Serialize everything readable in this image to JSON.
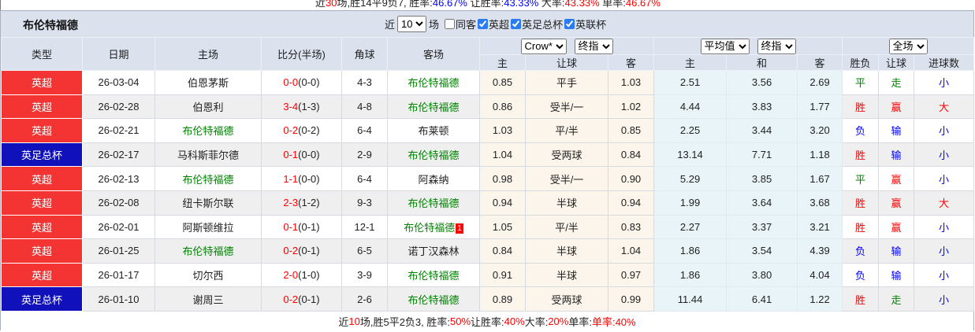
{
  "colors": {
    "red": "#ff0000",
    "green": "#008000",
    "blue": "#0000ff",
    "badge_premier": "#f43333",
    "badge_facup": "#1111bb",
    "header_bg": "#dbe2ee",
    "odds_bg": "#fcf5ec",
    "avg_bg": "#e9f4f8",
    "alt_row_bg": "#efeff0"
  },
  "top_partial_line": {
    "segments": [
      {
        "text": "近",
        "color": "#222222"
      },
      {
        "text": "30",
        "color": "#ff0000"
      },
      {
        "text": "场,胜14平9负7, 胜率:",
        "color": "#222222"
      },
      {
        "text": "46.67%",
        "color": "#0000ff"
      },
      {
        "text": " 让胜率:",
        "color": "#222222"
      },
      {
        "text": "43.33%",
        "color": "#0000ff"
      },
      {
        "text": " 大率:",
        "color": "#222222"
      },
      {
        "text": "43.33%",
        "color": "#ff0000"
      },
      {
        "text": " 单率:",
        "color": "#222222"
      },
      {
        "text": "46.67%",
        "color": "#ff0000"
      }
    ]
  },
  "title_bar": {
    "team": "布伦特福德",
    "recent_prefix": "近",
    "recent_count": "10",
    "recent_suffix": "场",
    "filters": [
      {
        "label": "同客",
        "checked": false
      },
      {
        "label": "英超",
        "checked": true
      },
      {
        "label": "英足总杯",
        "checked": true
      },
      {
        "label": "英联杯",
        "checked": true
      }
    ]
  },
  "header": {
    "merged_columns": [
      "类型",
      "日期",
      "主场",
      "比分(半场)",
      "角球",
      "客场"
    ],
    "selects": {
      "odds_source": "Crow*",
      "odds_mode": "终指",
      "avg_source": "平均值",
      "avg_mode": "终指",
      "scope": "全场"
    },
    "sub_columns": [
      "主",
      "让球",
      "客",
      "主",
      "和",
      "客",
      "胜负",
      "让球",
      "进球数"
    ]
  },
  "rows": [
    {
      "type": "英超",
      "date": "26-03-04",
      "home": "伯恩茅斯",
      "home_is_focus": false,
      "score_ft": "0-0",
      "score_ht": "(0-0)",
      "corners": "4-3",
      "away": "布伦特福德",
      "away_is_focus": true,
      "away_card": "",
      "odds_home": "0.85",
      "handicap": "平手",
      "odds_away": "1.03",
      "avg_home": "2.51",
      "avg_draw": "3.56",
      "avg_away": "2.69",
      "result": "平",
      "handicap_result": "走",
      "goals_result": "小"
    },
    {
      "type": "英超",
      "date": "26-02-28",
      "home": "伯恩利",
      "home_is_focus": false,
      "score_ft": "3-4",
      "score_ht": "(1-3)",
      "corners": "4-8",
      "away": "布伦特福德",
      "away_is_focus": true,
      "away_card": "",
      "odds_home": "0.86",
      "handicap": "受半/一",
      "odds_away": "1.02",
      "avg_home": "4.44",
      "avg_draw": "3.83",
      "avg_away": "1.77",
      "result": "胜",
      "handicap_result": "赢",
      "goals_result": "大"
    },
    {
      "type": "英超",
      "date": "26-02-21",
      "home": "布伦特福德",
      "home_is_focus": true,
      "score_ft": "0-2",
      "score_ht": "(0-2)",
      "corners": "6-4",
      "away": "布莱顿",
      "away_is_focus": false,
      "away_card": "",
      "odds_home": "1.03",
      "handicap": "平/半",
      "odds_away": "0.85",
      "avg_home": "2.25",
      "avg_draw": "3.44",
      "avg_away": "3.20",
      "result": "负",
      "handicap_result": "输",
      "goals_result": "小"
    },
    {
      "type": "英足总杯",
      "date": "26-02-17",
      "home": "马科斯菲尔德",
      "home_is_focus": false,
      "score_ft": "0-1",
      "score_ht": "(0-0)",
      "corners": "2-9",
      "away": "布伦特福德",
      "away_is_focus": true,
      "away_card": "",
      "odds_home": "1.04",
      "handicap": "受两球",
      "odds_away": "0.84",
      "avg_home": "13.14",
      "avg_draw": "7.71",
      "avg_away": "1.18",
      "result": "胜",
      "handicap_result": "输",
      "goals_result": "小"
    },
    {
      "type": "英超",
      "date": "26-02-13",
      "home": "布伦特福德",
      "home_is_focus": true,
      "score_ft": "1-1",
      "score_ht": "(0-0)",
      "corners": "6-4",
      "away": "阿森纳",
      "away_is_focus": false,
      "away_card": "",
      "odds_home": "0.98",
      "handicap": "受半/一",
      "odds_away": "0.90",
      "avg_home": "5.29",
      "avg_draw": "3.85",
      "avg_away": "1.67",
      "result": "平",
      "handicap_result": "赢",
      "goals_result": "小"
    },
    {
      "type": "英超",
      "date": "26-02-08",
      "home": "纽卡斯尔联",
      "home_is_focus": false,
      "score_ft": "2-3",
      "score_ht": "(1-2)",
      "corners": "9-3",
      "away": "布伦特福德",
      "away_is_focus": true,
      "away_card": "",
      "odds_home": "0.94",
      "handicap": "半球",
      "odds_away": "0.94",
      "avg_home": "1.99",
      "avg_draw": "3.64",
      "avg_away": "3.68",
      "result": "胜",
      "handicap_result": "赢",
      "goals_result": "大"
    },
    {
      "type": "英超",
      "date": "26-02-01",
      "home": "阿斯顿维拉",
      "home_is_focus": false,
      "score_ft": "0-1",
      "score_ht": "(0-1)",
      "corners": "12-1",
      "away": "布伦特福德",
      "away_is_focus": true,
      "away_card": "1",
      "odds_home": "1.05",
      "handicap": "平/半",
      "odds_away": "0.83",
      "avg_home": "2.27",
      "avg_draw": "3.37",
      "avg_away": "3.21",
      "result": "胜",
      "handicap_result": "赢",
      "goals_result": "小"
    },
    {
      "type": "英超",
      "date": "26-01-25",
      "home": "布伦特福德",
      "home_is_focus": true,
      "score_ft": "0-2",
      "score_ht": "(0-1)",
      "corners": "6-5",
      "away": "诺丁汉森林",
      "away_is_focus": false,
      "away_card": "",
      "odds_home": "0.84",
      "handicap": "半球",
      "odds_away": "1.04",
      "avg_home": "1.86",
      "avg_draw": "3.54",
      "avg_away": "4.39",
      "result": "负",
      "handicap_result": "输",
      "goals_result": "小"
    },
    {
      "type": "英超",
      "date": "26-01-17",
      "home": "切尔西",
      "home_is_focus": false,
      "score_ft": "2-0",
      "score_ht": "(1-0)",
      "corners": "3-9",
      "away": "布伦特福德",
      "away_is_focus": true,
      "away_card": "",
      "odds_home": "0.91",
      "handicap": "半球",
      "odds_away": "0.97",
      "avg_home": "1.86",
      "avg_draw": "3.80",
      "avg_away": "4.04",
      "result": "负",
      "handicap_result": "输",
      "goals_result": "小"
    },
    {
      "type": "英足总杯",
      "date": "26-01-10",
      "home": "谢周三",
      "home_is_focus": false,
      "score_ft": "0-2",
      "score_ht": "(0-1)",
      "corners": "2-6",
      "away": "布伦特福德",
      "away_is_focus": true,
      "away_card": "",
      "odds_home": "0.89",
      "handicap": "受两球",
      "odds_away": "0.99",
      "avg_home": "11.44",
      "avg_draw": "6.41",
      "avg_away": "1.22",
      "result": "胜",
      "handicap_result": "走",
      "goals_result": "小"
    }
  ],
  "footer": {
    "segments": [
      {
        "text": "近",
        "color": "#222222"
      },
      {
        "text": "10",
        "color": "#ff0000"
      },
      {
        "text": "场,胜5平2负3, 胜率:",
        "color": "#222222"
      },
      {
        "text": "50%",
        "color": "#ff0000"
      },
      {
        "text": " 让胜率:",
        "color": "#222222"
      },
      {
        "text": "40%",
        "color": "#ff0000"
      },
      {
        "text": " 大率:",
        "color": "#222222"
      },
      {
        "text": "20%",
        "color": "#ff0000"
      },
      {
        "text": " 单率:",
        "color": "#222222"
      },
      {
        "text": " 单率:40%",
        "color": "#ff0000",
        "_note": ""
      }
    ]
  }
}
